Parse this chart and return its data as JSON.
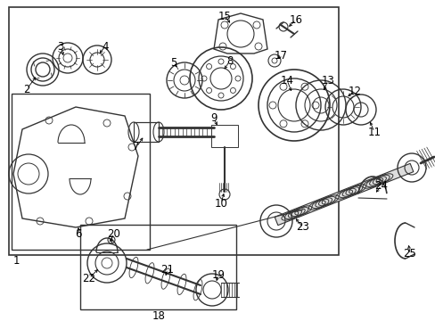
{
  "bg_color": "#ffffff",
  "line_color": "#333333",
  "fig_width": 4.89,
  "fig_height": 3.6,
  "dpi": 100,
  "font_size": 8.5,
  "small_font": 7.0
}
